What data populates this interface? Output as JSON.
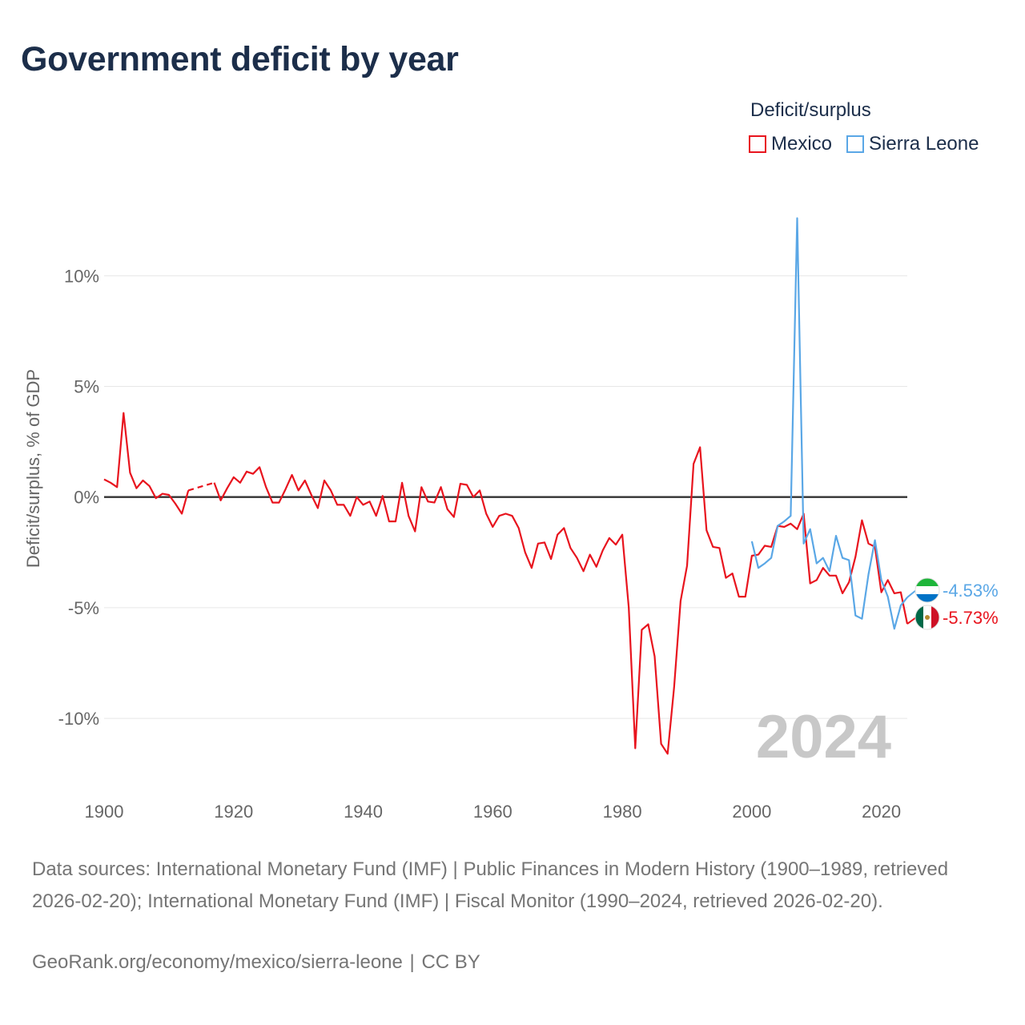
{
  "title": "Government deficit by year",
  "legend": {
    "title": "Deficit/surplus",
    "items": [
      {
        "label": "Mexico",
        "color": "#e8141e"
      },
      {
        "label": "Sierra Leone",
        "color": "#5aa7e6"
      }
    ]
  },
  "footer": {
    "sources": "Data sources: International Monetary Fund (IMF) | Public Finances in Modern History (1900–1989, retrieved 2026-02-20); International Monetary Fund (IMF) | Fiscal Monitor (1990–2024, retrieved 2026-02-20).",
    "credit_url": "GeoRank.org/economy/mexico/sierra-leone",
    "license": "CC BY"
  },
  "chart_data": {
    "type": "line",
    "title": "Government deficit by year",
    "xlabel": "",
    "ylabel": "Deficit/surplus, % of GDP",
    "xlim": [
      1900,
      2024
    ],
    "ylim": [
      -13,
      14.5
    ],
    "x_ticks": [
      {
        "value": 1900,
        "label": "1900"
      },
      {
        "value": 1920,
        "label": "1920"
      },
      {
        "value": 1940,
        "label": "1940"
      },
      {
        "value": 1960,
        "label": "1960"
      },
      {
        "value": 1980,
        "label": "1980"
      },
      {
        "value": 2000,
        "label": "2000"
      },
      {
        "value": 2020,
        "label": "2020"
      }
    ],
    "y_ticks": [
      {
        "value": 10,
        "label": "10%"
      },
      {
        "value": 5,
        "label": "5%"
      },
      {
        "value": 0,
        "label": "0%"
      },
      {
        "value": -5,
        "label": "-5%"
      },
      {
        "value": -10,
        "label": "-10%"
      }
    ],
    "grid": true,
    "year_watermark": "2024",
    "series": [
      {
        "name": "Mexico",
        "color": "#e8141e",
        "end_label": "-5.73%",
        "segments": [
          {
            "style": "solid",
            "points": [
              [
                1900,
                0.8
              ],
              [
                1901,
                0.65
              ],
              [
                1902,
                0.45
              ],
              [
                1903,
                3.8
              ],
              [
                1904,
                1.1
              ],
              [
                1905,
                0.4
              ],
              [
                1906,
                0.75
              ],
              [
                1907,
                0.5
              ],
              [
                1908,
                -0.05
              ],
              [
                1909,
                0.15
              ],
              [
                1910,
                0.1
              ],
              [
                1911,
                -0.3
              ],
              [
                1912,
                -0.75
              ],
              [
                1913,
                0.3
              ]
            ]
          },
          {
            "style": "dashed",
            "points": [
              [
                1913,
                0.3
              ],
              [
                1917,
                0.65
              ]
            ]
          },
          {
            "style": "solid",
            "points": [
              [
                1917,
                0.65
              ],
              [
                1918,
                -0.15
              ],
              [
                1919,
                0.4
              ],
              [
                1920,
                0.9
              ],
              [
                1921,
                0.65
              ],
              [
                1922,
                1.15
              ],
              [
                1923,
                1.05
              ],
              [
                1924,
                1.35
              ],
              [
                1925,
                0.45
              ],
              [
                1926,
                -0.25
              ],
              [
                1927,
                -0.25
              ],
              [
                1928,
                0.35
              ],
              [
                1929,
                1.0
              ],
              [
                1930,
                0.3
              ],
              [
                1931,
                0.75
              ],
              [
                1932,
                0.1
              ],
              [
                1933,
                -0.5
              ],
              [
                1934,
                0.75
              ],
              [
                1935,
                0.3
              ],
              [
                1936,
                -0.35
              ],
              [
                1937,
                -0.35
              ],
              [
                1938,
                -0.85
              ],
              [
                1939,
                0.0
              ],
              [
                1940,
                -0.35
              ],
              [
                1941,
                -0.2
              ],
              [
                1942,
                -0.85
              ],
              [
                1943,
                0.05
              ],
              [
                1944,
                -1.1
              ],
              [
                1945,
                -1.1
              ],
              [
                1946,
                0.65
              ],
              [
                1947,
                -0.85
              ],
              [
                1948,
                -1.55
              ],
              [
                1949,
                0.45
              ],
              [
                1950,
                -0.2
              ],
              [
                1951,
                -0.25
              ],
              [
                1952,
                0.45
              ],
              [
                1953,
                -0.55
              ],
              [
                1954,
                -0.9
              ],
              [
                1955,
                0.6
              ],
              [
                1956,
                0.55
              ],
              [
                1957,
                0.0
              ],
              [
                1958,
                0.3
              ],
              [
                1959,
                -0.75
              ],
              [
                1960,
                -1.35
              ],
              [
                1961,
                -0.85
              ],
              [
                1962,
                -0.75
              ],
              [
                1963,
                -0.85
              ],
              [
                1964,
                -1.4
              ],
              [
                1965,
                -2.5
              ],
              [
                1966,
                -3.2
              ],
              [
                1967,
                -2.1
              ],
              [
                1968,
                -2.05
              ],
              [
                1969,
                -2.8
              ],
              [
                1970,
                -1.7
              ],
              [
                1971,
                -1.4
              ],
              [
                1972,
                -2.3
              ],
              [
                1973,
                -2.75
              ],
              [
                1974,
                -3.35
              ],
              [
                1975,
                -2.6
              ],
              [
                1976,
                -3.15
              ],
              [
                1977,
                -2.4
              ],
              [
                1978,
                -1.85
              ],
              [
                1979,
                -2.15
              ],
              [
                1980,
                -1.7
              ],
              [
                1981,
                -5.0
              ],
              [
                1982,
                -11.35
              ],
              [
                1983,
                -6.0
              ],
              [
                1984,
                -5.75
              ],
              [
                1985,
                -7.2
              ],
              [
                1986,
                -11.15
              ],
              [
                1987,
                -11.6
              ],
              [
                1988,
                -8.6
              ],
              [
                1989,
                -4.7
              ],
              [
                1990,
                -3.1
              ],
              [
                1991,
                1.5
              ],
              [
                1992,
                2.25
              ],
              [
                1993,
                -1.5
              ],
              [
                1994,
                -2.25
              ],
              [
                1995,
                -2.3
              ],
              [
                1996,
                -3.65
              ],
              [
                1997,
                -3.45
              ],
              [
                1998,
                -4.5
              ],
              [
                1999,
                -4.5
              ],
              [
                2000,
                -2.65
              ],
              [
                2001,
                -2.6
              ],
              [
                2002,
                -2.2
              ],
              [
                2003,
                -2.25
              ],
              [
                2004,
                -1.3
              ],
              [
                2005,
                -1.35
              ],
              [
                2006,
                -1.2
              ],
              [
                2007,
                -1.45
              ],
              [
                2008,
                -0.75
              ],
              [
                2009,
                -3.9
              ],
              [
                2010,
                -3.75
              ],
              [
                2011,
                -3.2
              ],
              [
                2012,
                -3.55
              ],
              [
                2013,
                -3.55
              ],
              [
                2014,
                -4.35
              ],
              [
                2015,
                -3.85
              ],
              [
                2016,
                -2.7
              ],
              [
                2017,
                -1.05
              ],
              [
                2018,
                -2.1
              ],
              [
                2019,
                -2.25
              ],
              [
                2020,
                -4.3
              ],
              [
                2021,
                -3.75
              ],
              [
                2022,
                -4.35
              ],
              [
                2023,
                -4.3
              ],
              [
                2024,
                -5.73
              ]
            ]
          }
        ]
      },
      {
        "name": "Sierra Leone",
        "color": "#5aa7e6",
        "end_label": "-4.53%",
        "segments": [
          {
            "style": "solid",
            "points": [
              [
                2000,
                -2.0
              ],
              [
                2001,
                -3.2
              ],
              [
                2002,
                -3.0
              ],
              [
                2003,
                -2.75
              ],
              [
                2004,
                -1.3
              ],
              [
                2005,
                -1.1
              ],
              [
                2006,
                -0.85
              ],
              [
                2007,
                12.6
              ],
              [
                2008,
                -2.1
              ],
              [
                2009,
                -1.45
              ],
              [
                2010,
                -3.0
              ],
              [
                2011,
                -2.75
              ],
              [
                2012,
                -3.35
              ],
              [
                2013,
                -1.75
              ],
              [
                2014,
                -2.75
              ],
              [
                2015,
                -2.85
              ],
              [
                2016,
                -5.35
              ],
              [
                2017,
                -5.5
              ],
              [
                2018,
                -3.5
              ],
              [
                2019,
                -1.95
              ],
              [
                2020,
                -3.75
              ],
              [
                2021,
                -4.5
              ],
              [
                2022,
                -5.95
              ],
              [
                2023,
                -4.9
              ],
              [
                2024,
                -4.53
              ]
            ]
          }
        ]
      }
    ]
  }
}
